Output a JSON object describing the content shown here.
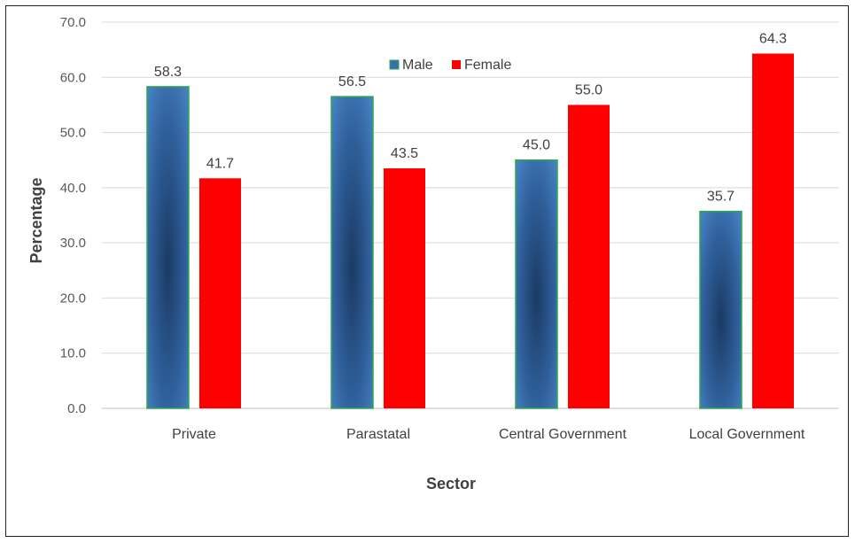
{
  "chart_data": {
    "type": "bar",
    "title": "",
    "xlabel": "Sector",
    "ylabel": "Percentage",
    "categories": [
      "Private",
      "Parastatal",
      "Central Government",
      "Local Government"
    ],
    "series": [
      {
        "name": "Male",
        "values": [
          58.3,
          56.5,
          45.0,
          35.7
        ],
        "color": "#3a6fae"
      },
      {
        "name": "Female",
        "values": [
          41.7,
          43.5,
          55.0,
          64.3
        ],
        "color": "#ff0000"
      }
    ],
    "value_labels": {
      "Male": [
        "58.3",
        "56.5",
        "45.0",
        "35.7"
      ],
      "Female": [
        "41.7",
        "43.5",
        "55.0",
        "64.3"
      ]
    },
    "ylim": [
      0,
      70
    ],
    "yticks": [
      "0.0",
      "10.0",
      "20.0",
      "30.0",
      "40.0",
      "50.0",
      "60.0",
      "70.0"
    ],
    "ytick_values": [
      0,
      10,
      20,
      30,
      40,
      50,
      60,
      70
    ],
    "grid": true,
    "legend_position": "top-center",
    "colors": {
      "male_edge": "#2ea84a",
      "grid": "#d9d9d9",
      "text": "#404040"
    }
  }
}
